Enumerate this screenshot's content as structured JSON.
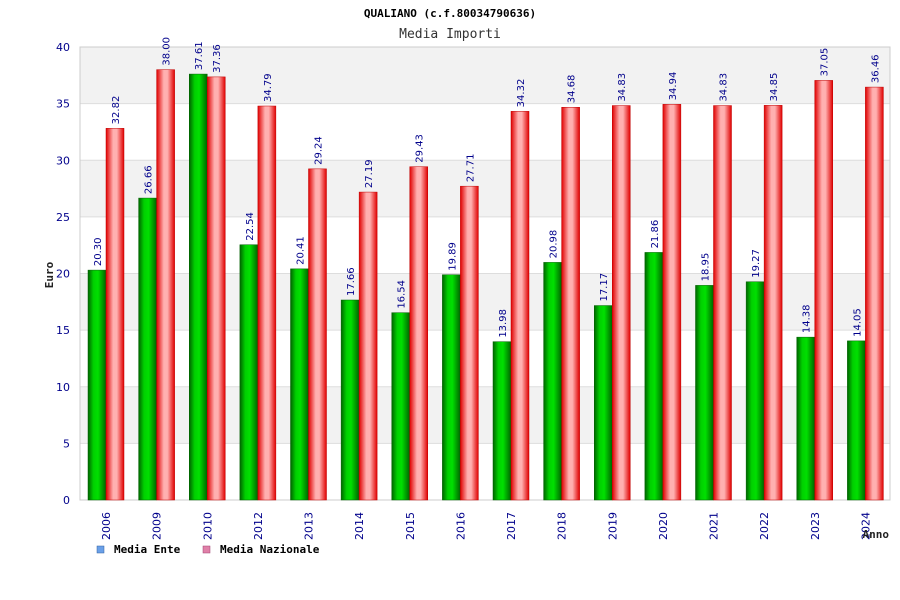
{
  "chart_data": {
    "type": "bar",
    "title": "QUALIANO (c.f.80034790636)",
    "subtitle": "Media Importi",
    "ylabel": "Euro",
    "xlabel": "Anno",
    "ylim": [
      0,
      40
    ],
    "yticks": [
      "0",
      "5",
      "10",
      "15",
      "20",
      "25",
      "30",
      "35",
      "40"
    ],
    "categories": [
      "2006",
      "2009",
      "2010",
      "2012",
      "2013",
      "2014",
      "2015",
      "2016",
      "2017",
      "2018",
      "2019",
      "2020",
      "2021",
      "2022",
      "2023",
      "2024"
    ],
    "series": [
      {
        "name": "Media Ente",
        "values": [
          20.3,
          26.66,
          37.61,
          22.54,
          20.41,
          17.66,
          16.54,
          19.89,
          13.98,
          20.98,
          17.17,
          21.86,
          18.95,
          19.27,
          14.38,
          14.05
        ],
        "labels": [
          "20.30",
          "26.66",
          "37.61",
          "22.54",
          "20.41",
          "17.66",
          "16.54",
          "19.89",
          "13.98",
          "20.98",
          "17.17",
          "21.86",
          "18.95",
          "19.27",
          "14.38",
          "14.05"
        ],
        "color": "#00c000"
      },
      {
        "name": "Media Nazionale",
        "values": [
          32.82,
          38.0,
          37.36,
          34.79,
          29.24,
          27.19,
          29.43,
          27.71,
          34.32,
          34.68,
          34.83,
          34.94,
          34.83,
          34.85,
          37.05,
          36.46
        ],
        "labels": [
          "32.82",
          "38.00",
          "37.36",
          "34.79",
          "29.24",
          "27.19",
          "29.43",
          "27.71",
          "34.32",
          "34.68",
          "34.83",
          "34.94",
          "34.83",
          "34.85",
          "37.05",
          "36.46"
        ],
        "color": "#ff0000"
      }
    ],
    "legend": {
      "placement": "bottom-left",
      "items": [
        {
          "name": "Media Ente",
          "color": "#6aa0e8"
        },
        {
          "name": "Media Nazionale",
          "color": "#e080a8"
        }
      ]
    },
    "grid": true,
    "grid_band_colors": [
      "#f2f2f2",
      "#ffffff"
    ]
  }
}
